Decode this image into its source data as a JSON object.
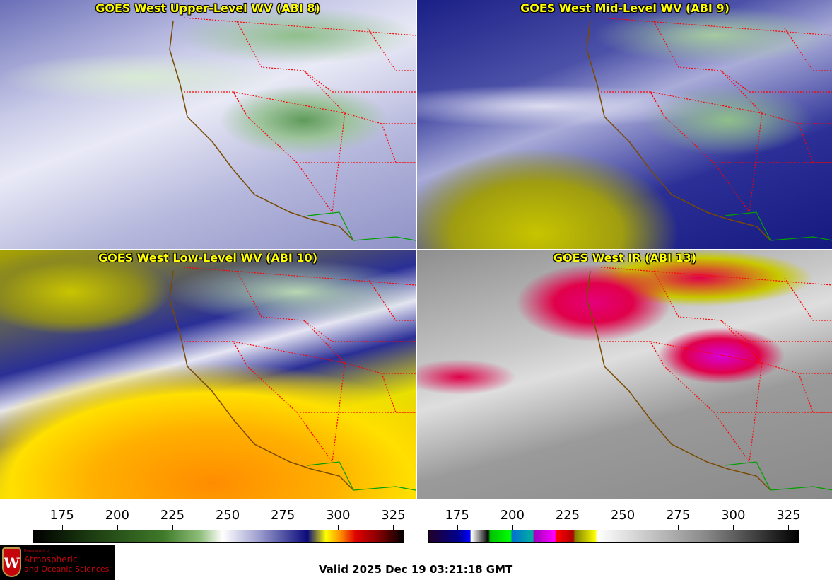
{
  "panels": [
    {
      "title": "GOES West Upper-Level WV (ABI 8)"
    },
    {
      "title": "GOES West Mid-Level WV (ABI 9)"
    },
    {
      "title": "GOES West Low-Level WV (ABI 10)"
    },
    {
      "title": "GOES West IR (ABI 13)"
    }
  ],
  "colorbars": [
    {
      "name": "water-vapor",
      "range": [
        162,
        330
      ],
      "ticks": [
        175,
        200,
        225,
        250,
        275,
        300,
        325
      ]
    },
    {
      "name": "infrared",
      "range": [
        162,
        330
      ],
      "ticks": [
        175,
        200,
        225,
        250,
        275,
        300,
        325
      ]
    }
  ],
  "logo": {
    "line1": "Department of",
    "line2": "Atmospheric",
    "line3": "and Oceanic Sciences",
    "mark": "W"
  },
  "valid_time": "Valid 2025 Dec 19 03:21:18 GMT",
  "colors": {
    "title": "#ffff00",
    "state_borders": "#ff0000",
    "coastline": "#7a4a00",
    "mexico_border": "#00a000"
  }
}
